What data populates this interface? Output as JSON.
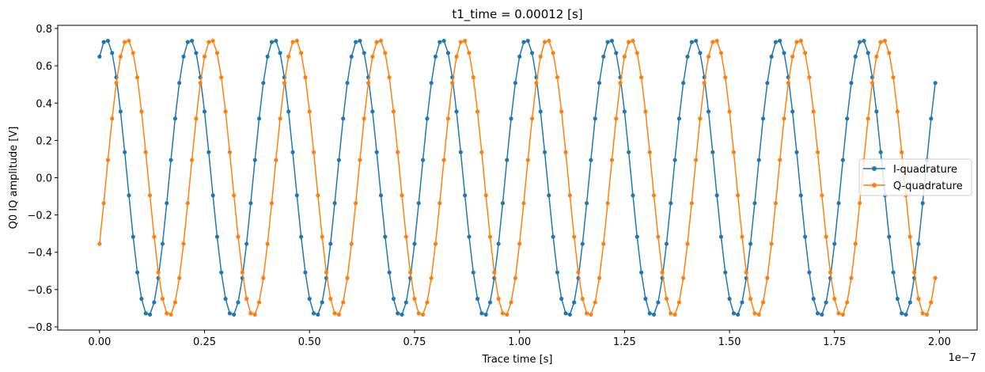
{
  "chart_data": {
    "type": "line",
    "title": "t1_time = 0.00012 [s]",
    "xlabel": "Trace time [s]",
    "ylabel": "Q0 IQ amplitude [V]",
    "x_offset_label": "1e−7",
    "xlim": [
      -9.95e-09,
      2.0895e-07
    ],
    "ylim": [
      -0.817,
      0.817
    ],
    "x_ticks": [
      0,
      2.5e-08,
      5e-08,
      7.5e-08,
      1e-07,
      1.25e-07,
      1.5e-07,
      1.75e-07,
      2e-07
    ],
    "x_tick_labels": [
      "0.00",
      "0.25",
      "0.50",
      "0.75",
      "1.00",
      "1.25",
      "1.50",
      "1.75",
      "2.00"
    ],
    "y_ticks": [
      -0.8,
      -0.6,
      -0.4,
      -0.2,
      0.0,
      0.2,
      0.4,
      0.6,
      0.8
    ],
    "y_tick_labels": [
      "−0.8",
      "−0.6",
      "−0.4",
      "−0.2",
      "0.0",
      "0.2",
      "0.4",
      "0.6",
      "0.8"
    ],
    "grid": false,
    "legend_position": "center-right",
    "x_samples": {
      "start": 0,
      "step": 1e-09,
      "count": 200
    },
    "series": [
      {
        "name": "I-quadrature",
        "color": "#1f77b4",
        "model": "A*cos(2*pi*f*t + phi)",
        "amplitude": 0.74,
        "frequency_hz": 50000000.0,
        "phase_rad": -0.5,
        "first_value": 0.65,
        "last_value": 0.5
      },
      {
        "name": "Q-quadrature",
        "color": "#ff7f0e",
        "model": "A*sin(2*pi*f*t + phi)",
        "amplitude": 0.74,
        "frequency_hz": 50000000.0,
        "phase_rad": -0.5,
        "first_value": -0.37,
        "last_value": -0.55
      }
    ]
  }
}
